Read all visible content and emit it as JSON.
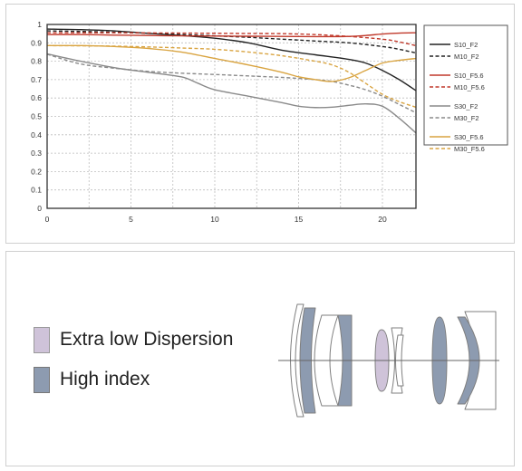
{
  "chart_data": {
    "type": "line",
    "xlim": [
      0,
      22
    ],
    "ylim": [
      0,
      1
    ],
    "x_ticks": [
      "0",
      "5",
      "10",
      "15",
      "20"
    ],
    "y_ticks": [
      "0",
      "0.1",
      "0.2",
      "0.3",
      "0.4",
      "0.5",
      "0.6",
      "0.7",
      "0.8",
      "0.9",
      "1"
    ],
    "grid": true,
    "legend_position": "right",
    "series": [
      {
        "name": "S10_F2",
        "color": "#222222",
        "dash": false,
        "points": [
          [
            0,
            0.975
          ],
          [
            2,
            0.972
          ],
          [
            4,
            0.965
          ],
          [
            6,
            0.952
          ],
          [
            8,
            0.94
          ],
          [
            10,
            0.925
          ],
          [
            12,
            0.9
          ],
          [
            14,
            0.86
          ],
          [
            16,
            0.835
          ],
          [
            18,
            0.81
          ],
          [
            19,
            0.79
          ],
          [
            20,
            0.75
          ],
          [
            21,
            0.7
          ],
          [
            22,
            0.64
          ]
        ]
      },
      {
        "name": "M10_F2",
        "color": "#222222",
        "dash": true,
        "points": [
          [
            0,
            0.965
          ],
          [
            2,
            0.962
          ],
          [
            4,
            0.958
          ],
          [
            6,
            0.952
          ],
          [
            8,
            0.945
          ],
          [
            10,
            0.938
          ],
          [
            12,
            0.93
          ],
          [
            14,
            0.92
          ],
          [
            16,
            0.91
          ],
          [
            18,
            0.9
          ],
          [
            20,
            0.88
          ],
          [
            21,
            0.865
          ],
          [
            22,
            0.845
          ]
        ]
      },
      {
        "name": "S10_F5.6",
        "color": "#c0392b",
        "dash": false,
        "points": [
          [
            0,
            0.945
          ],
          [
            2,
            0.945
          ],
          [
            4,
            0.942
          ],
          [
            6,
            0.94
          ],
          [
            8,
            0.938
          ],
          [
            10,
            0.937
          ],
          [
            12,
            0.936
          ],
          [
            14,
            0.935
          ],
          [
            16,
            0.934
          ],
          [
            18,
            0.935
          ],
          [
            19,
            0.94
          ],
          [
            20,
            0.948
          ],
          [
            21,
            0.953
          ],
          [
            22,
            0.955
          ]
        ]
      },
      {
        "name": "M10_F5.6",
        "color": "#c0392b",
        "dash": true,
        "points": [
          [
            0,
            0.955
          ],
          [
            2,
            0.955
          ],
          [
            4,
            0.955
          ],
          [
            6,
            0.954
          ],
          [
            8,
            0.953
          ],
          [
            10,
            0.952
          ],
          [
            12,
            0.951
          ],
          [
            14,
            0.95
          ],
          [
            16,
            0.945
          ],
          [
            18,
            0.935
          ],
          [
            20,
            0.92
          ],
          [
            21,
            0.905
          ],
          [
            22,
            0.885
          ]
        ]
      },
      {
        "name": "S30_F2",
        "color": "#8a8a8a",
        "dash": false,
        "points": [
          [
            0,
            0.84
          ],
          [
            2,
            0.8
          ],
          [
            4,
            0.765
          ],
          [
            6,
            0.74
          ],
          [
            8,
            0.715
          ],
          [
            9,
            0.68
          ],
          [
            10,
            0.645
          ],
          [
            12,
            0.61
          ],
          [
            14,
            0.575
          ],
          [
            15,
            0.555
          ],
          [
            16,
            0.548
          ],
          [
            17,
            0.55
          ],
          [
            18,
            0.56
          ],
          [
            19,
            0.568
          ],
          [
            20,
            0.555
          ],
          [
            21,
            0.49
          ],
          [
            22,
            0.41
          ]
        ]
      },
      {
        "name": "M30_F2",
        "color": "#8a8a8a",
        "dash": true,
        "points": [
          [
            0,
            0.838
          ],
          [
            2,
            0.785
          ],
          [
            4,
            0.762
          ],
          [
            6,
            0.745
          ],
          [
            8,
            0.735
          ],
          [
            10,
            0.728
          ],
          [
            12,
            0.72
          ],
          [
            14,
            0.712
          ],
          [
            16,
            0.7
          ],
          [
            17,
            0.69
          ],
          [
            18,
            0.67
          ],
          [
            19,
            0.645
          ],
          [
            20,
            0.61
          ],
          [
            21,
            0.565
          ],
          [
            22,
            0.52
          ]
        ]
      },
      {
        "name": "S30_F5.6",
        "color": "#d9a441",
        "dash": false,
        "points": [
          [
            0,
            0.885
          ],
          [
            2,
            0.885
          ],
          [
            4,
            0.88
          ],
          [
            6,
            0.87
          ],
          [
            8,
            0.85
          ],
          [
            10,
            0.815
          ],
          [
            12,
            0.78
          ],
          [
            14,
            0.74
          ],
          [
            15,
            0.715
          ],
          [
            16,
            0.7
          ],
          [
            17,
            0.69
          ],
          [
            18,
            0.71
          ],
          [
            19,
            0.75
          ],
          [
            20,
            0.79
          ],
          [
            21,
            0.805
          ],
          [
            22,
            0.815
          ]
        ]
      },
      {
        "name": "M30_F5.6",
        "color": "#d9a441",
        "dash": true,
        "points": [
          [
            0,
            0.885
          ],
          [
            2,
            0.884
          ],
          [
            4,
            0.882
          ],
          [
            6,
            0.878
          ],
          [
            8,
            0.872
          ],
          [
            10,
            0.865
          ],
          [
            12,
            0.85
          ],
          [
            14,
            0.83
          ],
          [
            16,
            0.8
          ],
          [
            17,
            0.78
          ],
          [
            18,
            0.74
          ],
          [
            19,
            0.68
          ],
          [
            20,
            0.62
          ],
          [
            21,
            0.58
          ],
          [
            22,
            0.55
          ]
        ]
      }
    ]
  },
  "lens_legend": {
    "items": [
      {
        "label": "Extra low Dispersion",
        "color": "#cfc3d9"
      },
      {
        "label": "High index",
        "color": "#8d9bb0"
      }
    ]
  }
}
